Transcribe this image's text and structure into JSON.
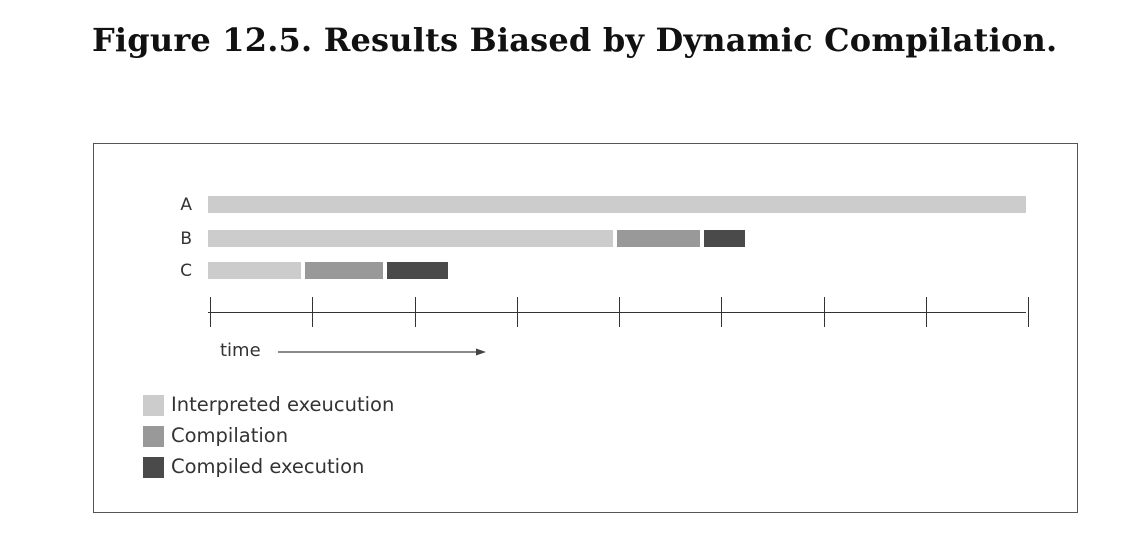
{
  "title": "Figure 12.5. Results Biased by Dynamic Compilation.",
  "colors": {
    "interpreted": "#cccccc",
    "compilation": "#999999",
    "compiled": "#4a4a4a",
    "axis": "#333333"
  },
  "runs": [
    {
      "label": "A",
      "segments": [
        {
          "phase": "interpreted",
          "start": 0,
          "end": 8
        }
      ]
    },
    {
      "label": "B",
      "segments": [
        {
          "phase": "interpreted",
          "start": 0,
          "end": 4
        },
        {
          "phase": "compilation",
          "start": 4,
          "end": 4.85
        },
        {
          "phase": "compiled",
          "start": 4.85,
          "end": 5.25
        }
      ]
    },
    {
      "label": "C",
      "segments": [
        {
          "phase": "interpreted",
          "start": 0,
          "end": 0.95
        },
        {
          "phase": "compilation",
          "start": 0.95,
          "end": 1.75
        },
        {
          "phase": "compiled",
          "start": 1.75,
          "end": 2.35
        }
      ]
    }
  ],
  "time_axis": {
    "label": "time",
    "ticks": [
      0,
      1,
      2,
      3,
      4,
      5,
      6,
      7,
      8
    ]
  },
  "legend": [
    {
      "phase": "interpreted",
      "label": "Interpreted exeucution"
    },
    {
      "phase": "compilation",
      "label": "Compilation"
    },
    {
      "phase": "compiled",
      "label": "Compiled execution"
    }
  ]
}
